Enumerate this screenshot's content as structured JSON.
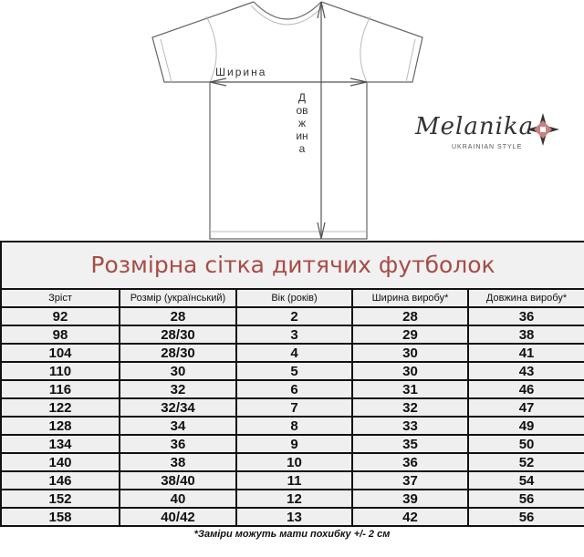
{
  "diagram": {
    "width_label": "Ширина",
    "length_label": "Довжина"
  },
  "logo": {
    "name": "Melanika",
    "tagline": "UKRAINIAN STYLE"
  },
  "table": {
    "title": "Розмірна сітка дитячих футболок",
    "headers": [
      "Зріст",
      "Розмір (український)",
      "Вік (років)",
      "Ширина виробу*",
      "Довжина виробу*"
    ],
    "rows": [
      [
        "92",
        "28",
        "2",
        "28",
        "36"
      ],
      [
        "98",
        "28/30",
        "3",
        "29",
        "38"
      ],
      [
        "104",
        "28/30",
        "4",
        "30",
        "41"
      ],
      [
        "110",
        "30",
        "5",
        "30",
        "43"
      ],
      [
        "116",
        "32",
        "6",
        "31",
        "46"
      ],
      [
        "122",
        "32/34",
        "7",
        "32",
        "47"
      ],
      [
        "128",
        "34",
        "8",
        "33",
        "49"
      ],
      [
        "134",
        "36",
        "9",
        "35",
        "50"
      ],
      [
        "140",
        "38",
        "10",
        "36",
        "52"
      ],
      [
        "146",
        "38/40",
        "11",
        "37",
        "54"
      ],
      [
        "152",
        "40",
        "12",
        "39",
        "56"
      ],
      [
        "158",
        "40/42",
        "13",
        "42",
        "56"
      ]
    ],
    "title_color": "#a84c46"
  },
  "footnote": "*Заміри можуть мати похибку +/- 2 см"
}
